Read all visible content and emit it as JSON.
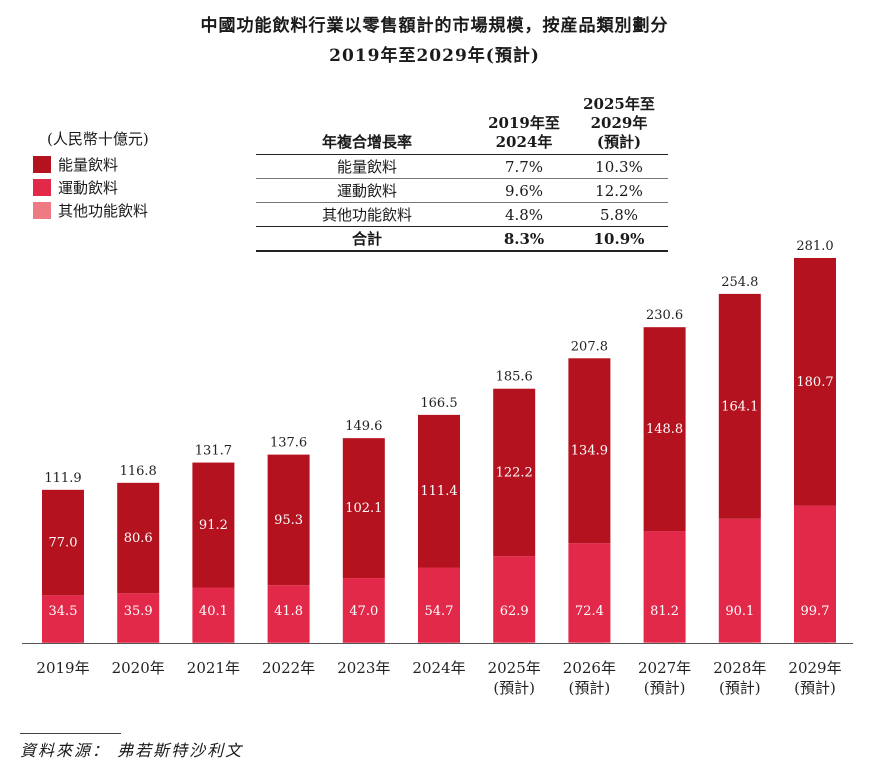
{
  "title": {
    "line1": "中國功能飲料行業以零售額計的市場規模，按産品類別劃分",
    "line2": "2019年至2029年(預計)"
  },
  "legend": {
    "unit": "(人民幣十億元)",
    "items": [
      {
        "label": "能量飲料",
        "color": "#b4121f"
      },
      {
        "label": "運動飲料",
        "color": "#e2294a"
      },
      {
        "label": "其他功能飲料",
        "color": "#ee7a84"
      }
    ]
  },
  "cagr_table": {
    "header": {
      "label": "年複合增長率",
      "col1": [
        "2019年至",
        "2024年"
      ],
      "col2": [
        "2025年至",
        "2029年",
        "(預計)"
      ]
    },
    "rows": [
      {
        "label": "能量飲料",
        "v1": "7.7%",
        "v2": "10.3%"
      },
      {
        "label": "運動飲料",
        "v1": "9.6%",
        "v2": "12.2%"
      },
      {
        "label": "其他功能飲料",
        "v1": "4.8%",
        "v2": "5.8%"
      }
    ],
    "total": {
      "label": "合計",
      "v1": "8.3%",
      "v2": "10.9%"
    }
  },
  "chart_data": {
    "type": "bar",
    "stacked": true,
    "title": "中國功能飲料行業以零售額計的市場規模，按産品類別劃分",
    "ylabel": "人民幣十億元",
    "categories": [
      [
        "2019年"
      ],
      [
        "2020年"
      ],
      [
        "2021年"
      ],
      [
        "2022年"
      ],
      [
        "2023年"
      ],
      [
        "2024年"
      ],
      [
        "2025年",
        "(預計)"
      ],
      [
        "2026年",
        "(預計)"
      ],
      [
        "2027年",
        "(預計)"
      ],
      [
        "2028年",
        "(預計)"
      ],
      [
        "2029年",
        "(預計)"
      ]
    ],
    "series": [
      {
        "name": "其他功能飲料",
        "color": "#ee7a84",
        "values": [
          "0.3",
          "0.4",
          "0.4",
          "0.4",
          "0.4",
          "0.4",
          "0.5",
          "0.5",
          "0.5",
          "0.6",
          "0.6"
        ]
      },
      {
        "name": "運動飲料",
        "color": "#e2294a",
        "values": [
          "34.5",
          "35.9",
          "40.1",
          "41.8",
          "47.0",
          "54.7",
          "62.9",
          "72.4",
          "81.2",
          "90.1",
          "99.7"
        ]
      },
      {
        "name": "能量飲料",
        "color": "#b4121f",
        "values": [
          "77.0",
          "80.6",
          "91.2",
          "95.3",
          "102.1",
          "111.4",
          "122.2",
          "134.9",
          "148.8",
          "164.1",
          "180.7"
        ]
      }
    ],
    "totals": [
      "111.9",
      "116.8",
      "131.7",
      "137.6",
      "149.6",
      "166.5",
      "185.6",
      "207.8",
      "230.6",
      "254.8",
      "281.0"
    ],
    "ylim": [
      0,
      281
    ]
  },
  "source": "資料來源： 弗若斯特沙利文"
}
